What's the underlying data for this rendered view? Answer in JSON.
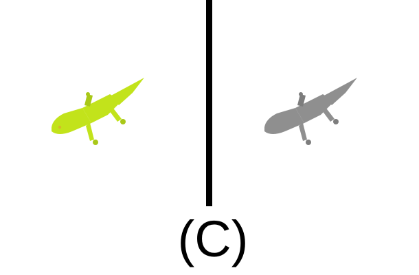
{
  "caption": "(C)",
  "panels": [
    {
      "icon": "gecko-icon",
      "color": "#c2e31b",
      "shade": "#a9c818"
    },
    {
      "icon": "gecko-icon",
      "color": "#8f8f8f",
      "shade": "#7d7d7d"
    }
  ],
  "divider_color": "#000000"
}
